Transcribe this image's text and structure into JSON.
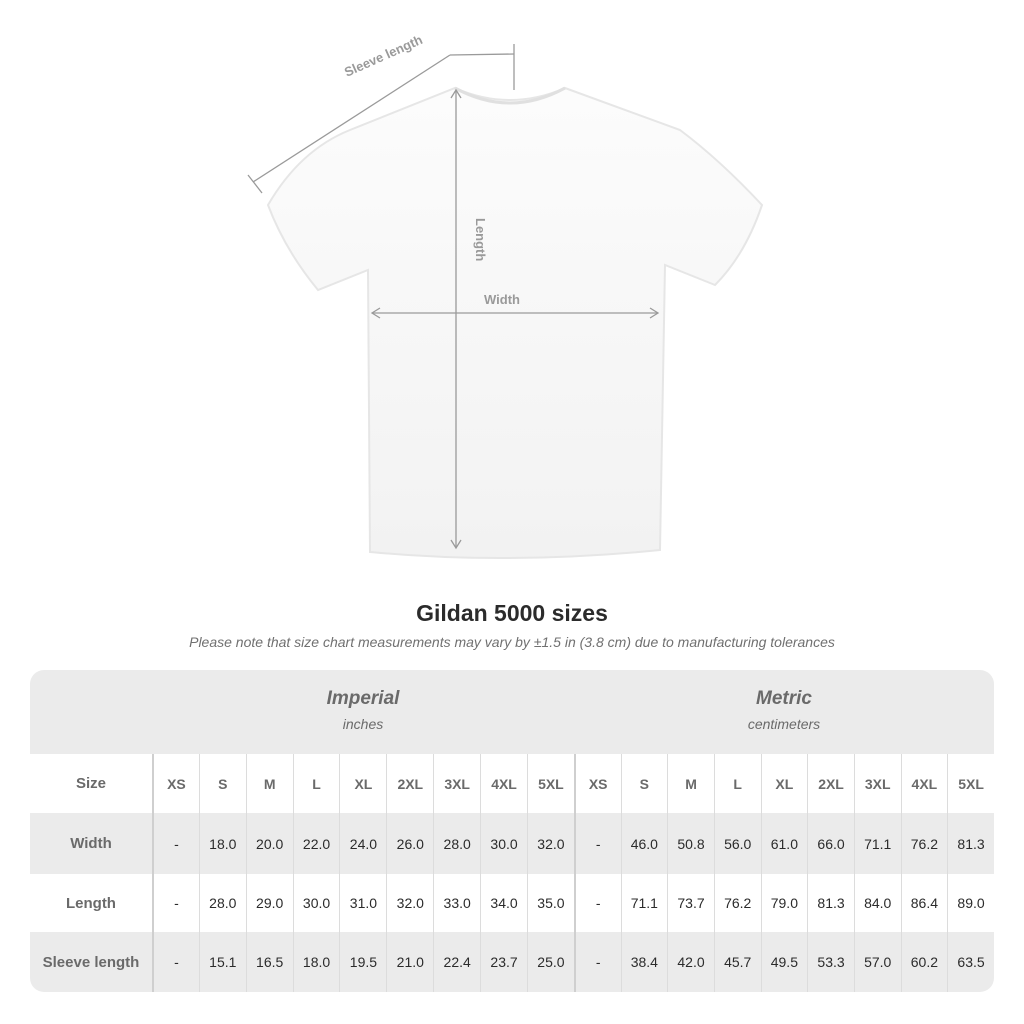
{
  "diagram": {
    "sleeve_label": "Sleeve length",
    "length_label": "Length",
    "width_label": "Width"
  },
  "title": "Gildan 5000 sizes",
  "note": "Please note that size chart measurements may vary by ±1.5 in (3.8 cm) due to manufacturing tolerances",
  "imperial": {
    "label": "Imperial",
    "unit": "inches"
  },
  "metric": {
    "label": "Metric",
    "unit": "centimeters"
  },
  "sizes": [
    "XS",
    "S",
    "M",
    "L",
    "XL",
    "2XL",
    "3XL",
    "4XL",
    "5XL"
  ],
  "size_header": "Size",
  "rows": [
    {
      "label": "Width",
      "imperial": [
        "-",
        "18.0",
        "20.0",
        "22.0",
        "24.0",
        "26.0",
        "28.0",
        "30.0",
        "32.0"
      ],
      "metric": [
        "-",
        "46.0",
        "50.8",
        "56.0",
        "61.0",
        "66.0",
        "71.1",
        "76.2",
        "81.3"
      ]
    },
    {
      "label": "Length",
      "imperial": [
        "-",
        "28.0",
        "29.0",
        "30.0",
        "31.0",
        "32.0",
        "33.0",
        "34.0",
        "35.0"
      ],
      "metric": [
        "-",
        "71.1",
        "73.7",
        "76.2",
        "79.0",
        "81.3",
        "84.0",
        "86.4",
        "89.0"
      ]
    },
    {
      "label": "Sleeve length",
      "imperial": [
        "-",
        "15.1",
        "16.5",
        "18.0",
        "19.5",
        "21.0",
        "22.4",
        "23.7",
        "25.0"
      ],
      "metric": [
        "-",
        "38.4",
        "42.0",
        "45.7",
        "49.5",
        "53.3",
        "57.0",
        "60.2",
        "63.5"
      ]
    }
  ]
}
